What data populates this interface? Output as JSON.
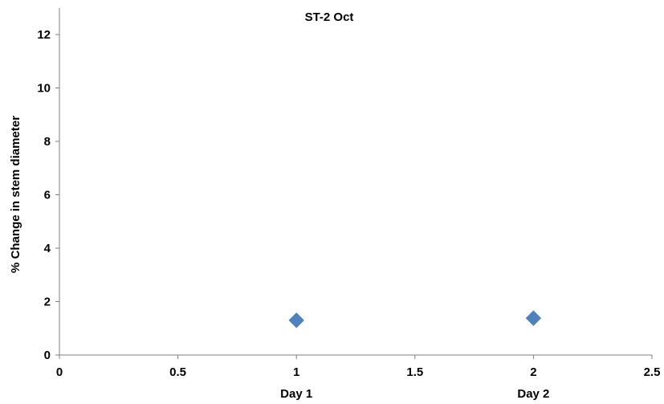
{
  "chart_data": {
    "type": "scatter",
    "title": "ST-2 Oct",
    "ylabel": "% Change in stem diameter",
    "xlabel": "",
    "xlim": [
      0,
      2.5
    ],
    "ylim": [
      0,
      13
    ],
    "x_ticks": [
      0,
      0.5,
      1,
      1.5,
      2,
      2.5
    ],
    "x_tick_labels": [
      "0",
      "0.5",
      "1",
      "1.5",
      "2",
      "2.5"
    ],
    "y_ticks": [
      0,
      2,
      4,
      6,
      8,
      10,
      12
    ],
    "y_tick_labels": [
      "0",
      "2",
      "4",
      "6",
      "8",
      "10",
      "12"
    ],
    "category_labels": [
      {
        "x": 1,
        "label": "Day 1"
      },
      {
        "x": 2,
        "label": "Day 2"
      }
    ],
    "series": [
      {
        "marker": "diamond",
        "color": "#4F81BD",
        "points": [
          {
            "x": 1,
            "y": 1.3
          },
          {
            "x": 2,
            "y": 1.38
          }
        ]
      }
    ],
    "grid": false,
    "legend": "none"
  }
}
